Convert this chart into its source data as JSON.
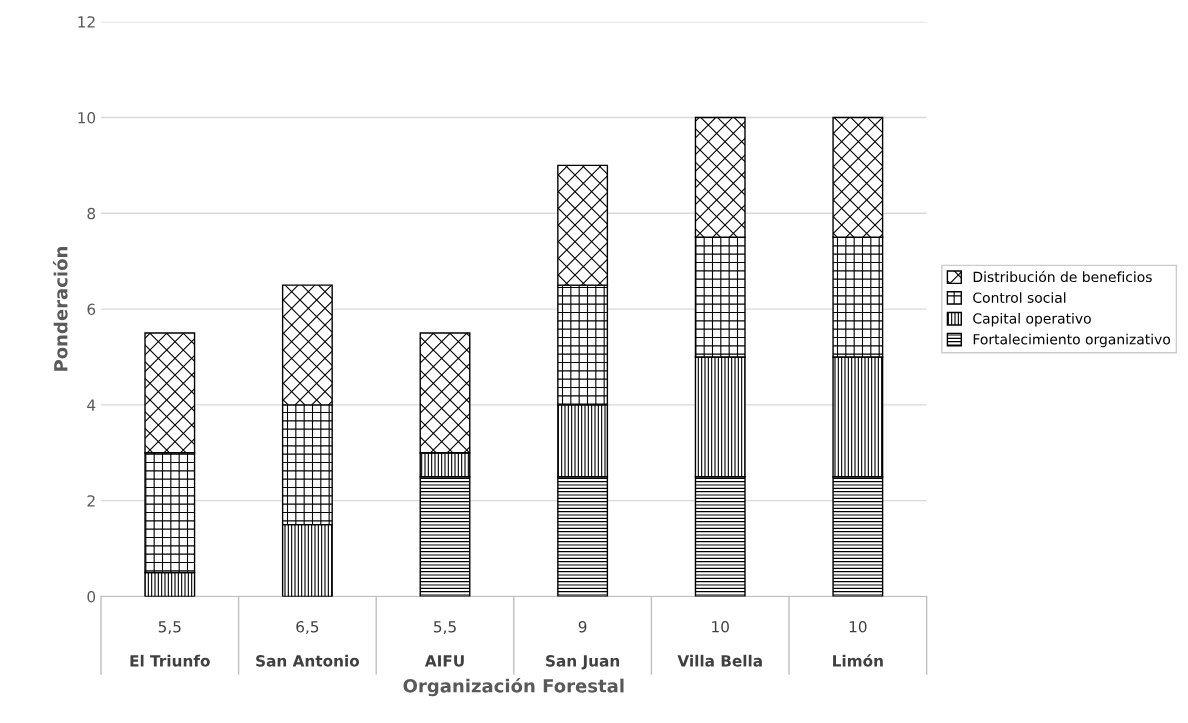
{
  "chart_data": {
    "type": "bar",
    "stacked": true,
    "xlabel": "Organización Forestal",
    "ylabel": "Ponderación",
    "categories": [
      "El Triunfo",
      "San Antonio",
      "AIFU",
      "San Juan",
      "Villa Bella",
      "Limón"
    ],
    "series": [
      {
        "name": "Fortalecimiento organizativo",
        "color": "#000000",
        "values": [
          0,
          0,
          2.5,
          2.5,
          2.5,
          2.5
        ]
      },
      {
        "name": "Capital operativo",
        "color": "#000000",
        "values": [
          0.5,
          1.5,
          0.5,
          1.5,
          2.5,
          2.5
        ]
      },
      {
        "name": "Control social",
        "color": "#000000",
        "values": [
          2.5,
          2.5,
          0,
          2.5,
          2.5,
          2.5
        ]
      },
      {
        "name": "Distribución de beneficios",
        "color": "#000000",
        "values": [
          2.5,
          2.5,
          2.5,
          2.5,
          2.5,
          2.5
        ]
      }
    ],
    "totals": [
      "5,5",
      "6,5",
      "5,5",
      "9",
      "10",
      "10"
    ],
    "ylim": [
      0,
      12
    ],
    "yticks": [
      0,
      2,
      4,
      6,
      8,
      10,
      12
    ],
    "grid": "y",
    "legend": "right"
  }
}
